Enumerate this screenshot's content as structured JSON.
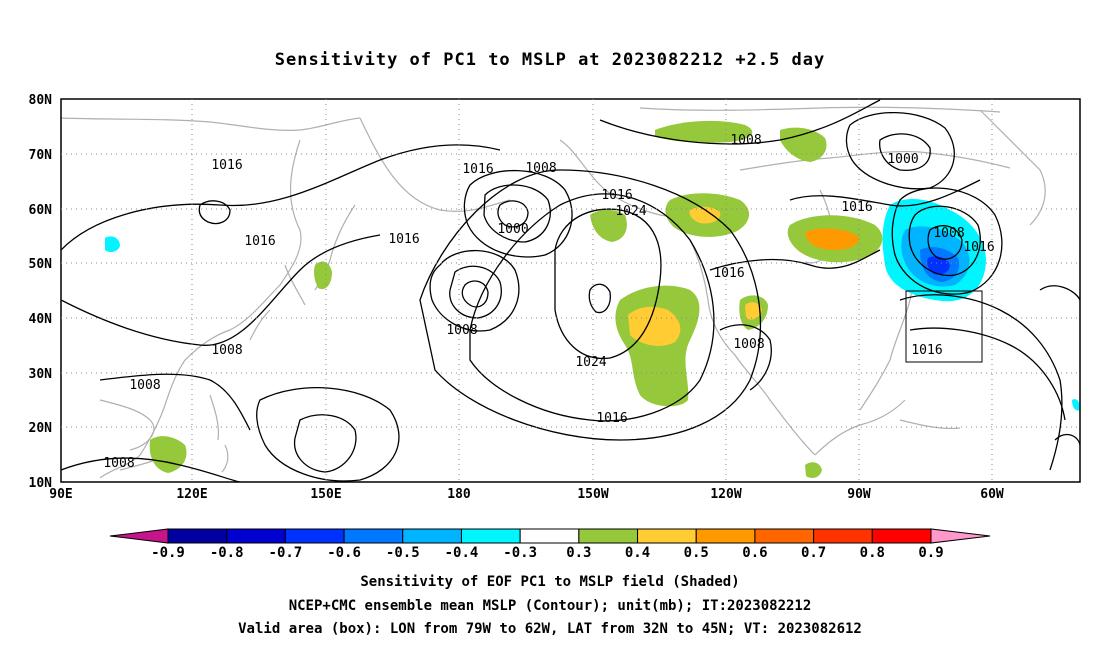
{
  "title": "Sensitivity of PC1 to MSLP at 2023082212 +2.5 day",
  "map": {
    "lat_labels": [
      "80N",
      "70N",
      "60N",
      "50N",
      "40N",
      "30N",
      "20N",
      "10N"
    ],
    "lon_labels": [
      "90E",
      "120E",
      "150E",
      "180",
      "150W",
      "120W",
      "90W",
      "60W"
    ],
    "contour_labels": [
      {
        "text": "1016"
      },
      {
        "text": "1016"
      },
      {
        "text": "1016"
      },
      {
        "text": "1008"
      },
      {
        "text": "1008"
      },
      {
        "text": "1008"
      },
      {
        "text": "1008"
      },
      {
        "text": "1000"
      },
      {
        "text": "1016"
      },
      {
        "text": "1024"
      },
      {
        "text": "1016"
      },
      {
        "text": "1024"
      },
      {
        "text": "1008"
      },
      {
        "text": "1016"
      },
      {
        "text": "1016"
      },
      {
        "text": "1008"
      },
      {
        "text": "1008"
      },
      {
        "text": "1000"
      },
      {
        "text": "1016"
      },
      {
        "text": "1008"
      },
      {
        "text": "1016"
      },
      {
        "text": "1016"
      }
    ],
    "valid_box": {
      "lon_west": "79W",
      "lon_east": "62W",
      "lat_south": "32N",
      "lat_north": "45N"
    }
  },
  "colorbar": {
    "levels": [
      "-0.9",
      "-0.8",
      "-0.7",
      "-0.6",
      "-0.5",
      "-0.4",
      "-0.3",
      "0.3",
      "0.4",
      "0.5",
      "0.6",
      "0.7",
      "0.8",
      "0.9"
    ],
    "colors": [
      "#c8148c",
      "#0000a0",
      "#0000d0",
      "#0032ff",
      "#0078ff",
      "#00b4ff",
      "#00f5ff",
      "#ffffff",
      "#96c83c",
      "#ffcc33",
      "#ff9900",
      "#ff6600",
      "#ff3300",
      "#ff0000",
      "#ff99cc"
    ]
  },
  "captions": {
    "line1": "Sensitivity of EOF PC1 to MSLP field (Shaded)",
    "line2": "NCEP+CMC ensemble mean MSLP (Contour); unit(mb); IT:2023082212",
    "line3": "Valid area (box): LON from 79W to 62W, LAT from 32N to 45N; VT: 2023082612"
  }
}
